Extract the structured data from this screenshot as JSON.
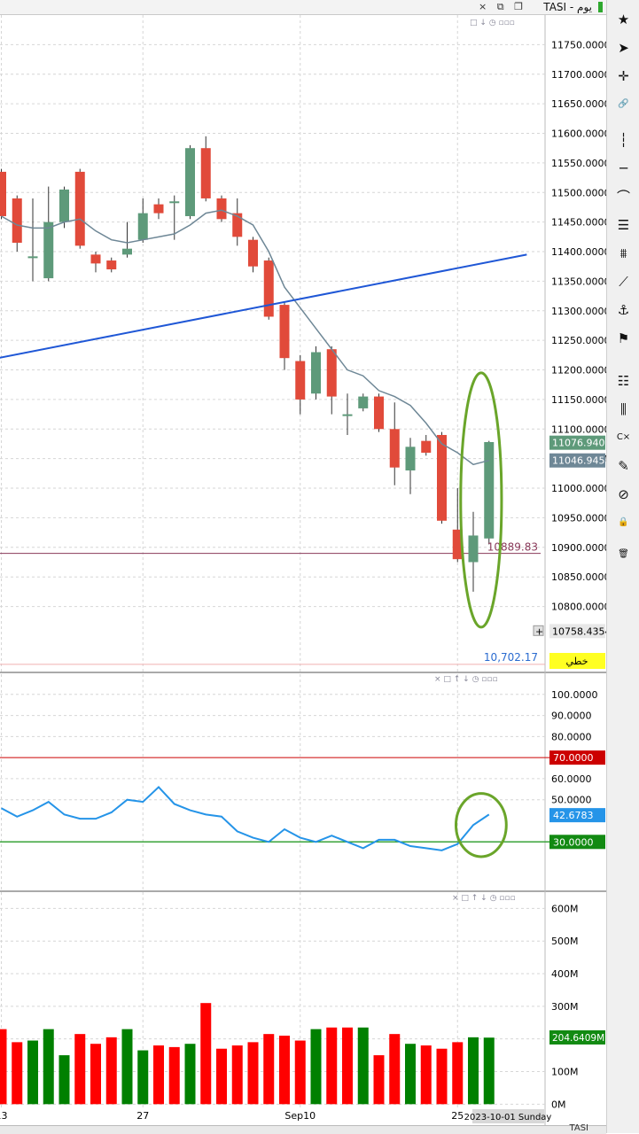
{
  "header": {
    "title": "TASI - يوم",
    "window_icons": "× ⧉ ❐"
  },
  "panel_controls": "□ ↓ ◷ ▫▫▫",
  "indicator_controls": "× □ ↑ ↓ ◷ ▫▫▫",
  "toolbar": {
    "tools": [
      {
        "name": "favorite-star-icon",
        "glyph": "★"
      },
      {
        "name": "pointer-cursor-icon",
        "glyph": "➤"
      },
      {
        "name": "crosshair-icon",
        "glyph": "✛"
      },
      {
        "name": "link-icon",
        "glyph": "🔗"
      },
      {
        "name": "vertical-line-icon",
        "glyph": "┆"
      },
      {
        "name": "horizontal-line-icon",
        "glyph": "─"
      },
      {
        "name": "curve-tool-icon",
        "glyph": "⌒"
      },
      {
        "name": "fibonacci-icon",
        "glyph": "☰"
      },
      {
        "name": "pattern-icon",
        "glyph": "⩩"
      },
      {
        "name": "zigzag-icon",
        "glyph": "⟋"
      },
      {
        "name": "text-anchor-icon",
        "glyph": "⚓"
      },
      {
        "name": "flag-icon",
        "glyph": "⚑"
      },
      {
        "name": "settings-list-icon",
        "glyph": "☷"
      },
      {
        "name": "candles-icon",
        "glyph": "⫼"
      },
      {
        "name": "clear-icon",
        "glyph": "C×"
      },
      {
        "name": "brush-icon",
        "glyph": "✎"
      },
      {
        "name": "hide-icon",
        "glyph": "⊘"
      },
      {
        "name": "lock-icon",
        "glyph": "🔒"
      },
      {
        "name": "trash-icon",
        "glyph": "🗑"
      }
    ]
  },
  "bottom": {
    "symbol": "TASI"
  },
  "colors": {
    "up": "#5e9a7a",
    "down": "#e14a3a",
    "ma": "#6e8796",
    "trend": "#1f57d6",
    "rsi": "#2594e8",
    "rsi_upper": "#cc0000",
    "rsi_lower": "#39a339",
    "vol_up": "#008000",
    "vol_down": "#ff0000",
    "ellipse": "#6aa52a"
  },
  "chart_data": [
    {
      "type": "candlestick",
      "name": "price",
      "x_ticks": [
        {
          "index": 0,
          "label": "13"
        },
        {
          "index": 9,
          "label": "27"
        },
        {
          "index": 19,
          "label": "Sep10"
        },
        {
          "index": 29,
          "label": "25"
        }
      ],
      "crosshair_date": "2023-10-01 Sunday",
      "ylim": [
        10690,
        11800
      ],
      "y_ticks": [
        10800,
        10850,
        10900,
        10950,
        11000,
        11050,
        11100,
        11150,
        11200,
        11250,
        11300,
        11350,
        11400,
        11450,
        11500,
        11550,
        11600,
        11650,
        11700,
        11750
      ],
      "y_tick_labels": [
        "10800.0000",
        "10850.0000",
        "10900.0000",
        "10950.0000",
        "11000.0000",
        "11050.0000",
        "11100.0000",
        "11150.0000",
        "11200.0000",
        "11250.0000",
        "11300.0000",
        "11350.0000",
        "11400.0000",
        "11450.0000",
        "11500.0000",
        "11550.0000",
        "11600.0000",
        "11650.0000",
        "11700.0000",
        "11750.0000"
      ],
      "candles": [
        {
          "o": 11535,
          "h": 11540,
          "c": 11460,
          "l": 11455
        },
        {
          "o": 11490,
          "h": 11495,
          "c": 11415,
          "l": 11400
        },
        {
          "o": 11390,
          "h": 11490,
          "c": 11392,
          "l": 11350
        },
        {
          "o": 11355,
          "h": 11510,
          "c": 11450,
          "l": 11350
        },
        {
          "o": 11450,
          "h": 11510,
          "c": 11505,
          "l": 11440
        },
        {
          "o": 11535,
          "h": 11540,
          "c": 11410,
          "l": 11405
        },
        {
          "o": 11395,
          "h": 11400,
          "c": 11380,
          "l": 11365
        },
        {
          "o": 11385,
          "h": 11390,
          "c": 11370,
          "l": 11365
        },
        {
          "o": 11395,
          "h": 11450,
          "c": 11405,
          "l": 11390
        },
        {
          "o": 11420,
          "h": 11490,
          "c": 11465,
          "l": 11415
        },
        {
          "o": 11480,
          "h": 11490,
          "c": 11465,
          "l": 11455
        },
        {
          "o": 11485,
          "h": 11495,
          "c": 11485,
          "l": 11420
        },
        {
          "o": 11460,
          "h": 11580,
          "c": 11575,
          "l": 11455
        },
        {
          "o": 11575,
          "h": 11595,
          "c": 11490,
          "l": 11485
        },
        {
          "o": 11490,
          "h": 11495,
          "c": 11455,
          "l": 11450
        },
        {
          "o": 11465,
          "h": 11490,
          "c": 11425,
          "l": 11410
        },
        {
          "o": 11420,
          "h": 11425,
          "c": 11375,
          "l": 11365
        },
        {
          "o": 11385,
          "h": 11390,
          "c": 11290,
          "l": 11285
        },
        {
          "o": 11310,
          "h": 11315,
          "c": 11220,
          "l": 11200
        },
        {
          "o": 11215,
          "h": 11225,
          "c": 11150,
          "l": 11125
        },
        {
          "o": 11160,
          "h": 11240,
          "c": 11230,
          "l": 11150
        },
        {
          "o": 11235,
          "h": 11240,
          "c": 11155,
          "l": 11125
        },
        {
          "o": 11125,
          "h": 11160,
          "c": 11125,
          "l": 11090
        },
        {
          "o": 11135,
          "h": 11160,
          "c": 11155,
          "l": 11130
        },
        {
          "o": 11155,
          "h": 11160,
          "c": 11100,
          "l": 11095
        },
        {
          "o": 11100,
          "h": 11145,
          "c": 11035,
          "l": 11005
        },
        {
          "o": 11030,
          "h": 11085,
          "c": 11070,
          "l": 10990
        },
        {
          "o": 11080,
          "h": 11090,
          "c": 11060,
          "l": 11055
        },
        {
          "o": 11090,
          "h": 11095,
          "c": 10945,
          "l": 10940
        },
        {
          "o": 10930,
          "h": 11000,
          "c": 10880,
          "l": 10875
        },
        {
          "o": 10875,
          "h": 10960,
          "c": 10920,
          "l": 10825
        },
        {
          "o": 10915,
          "h": 11080,
          "c": 11078,
          "l": 10905
        }
      ],
      "moving_average": [
        11460,
        11445,
        11440,
        11440,
        11450,
        11455,
        11435,
        11420,
        11415,
        11420,
        11425,
        11430,
        11445,
        11465,
        11470,
        11460,
        11445,
        11400,
        11340,
        11305,
        11270,
        11235,
        11200,
        11190,
        11165,
        11155,
        11140,
        11110,
        11075,
        11060,
        11040,
        11047
      ],
      "trendline": {
        "x0": -0.6,
        "y0": 11218,
        "x1": 33.4,
        "y1": 11395
      },
      "horizontal_line": {
        "value": 10889.83,
        "label": "10889.83"
      },
      "support_line": {
        "value": 10702.17,
        "label": "10,702.17"
      },
      "price_labels": [
        {
          "label": "11076.9400",
          "value": 11076.94,
          "style": "up"
        },
        {
          "label": "11046.9450",
          "value": 11046.945,
          "style": "ma"
        },
        {
          "label": "10758.4354",
          "value": 10758.4354,
          "style": "cross"
        }
      ],
      "line_type_badge": "خطي",
      "highlight": {
        "cx": 30.5,
        "cy": 10980,
        "rx": 1.3,
        "ry": 215
      }
    },
    {
      "type": "line",
      "name": "rsi",
      "ylim": [
        7,
        110
      ],
      "y_ticks": [
        50,
        60,
        80,
        90,
        100
      ],
      "y_tick_labels": [
        "50.0000",
        "60.0000",
        "80.0000",
        "90.0000",
        "100.0000"
      ],
      "upper": {
        "value": 70,
        "label": "70.0000"
      },
      "lower": {
        "value": 30,
        "label": "30.0000"
      },
      "current": {
        "value": 42.6783,
        "label": "42.6783"
      },
      "values": [
        46,
        42,
        45,
        49,
        43,
        41,
        41,
        44,
        50,
        49,
        56,
        48,
        45,
        43,
        42,
        35,
        32,
        30,
        36,
        32,
        30,
        33,
        30,
        27,
        31,
        31,
        28,
        27,
        26,
        29,
        38,
        43
      ],
      "highlight": {
        "cx": 30.5,
        "cy": 38,
        "rx": 1.6,
        "ry": 15
      }
    },
    {
      "type": "bar",
      "name": "volume",
      "ylim": [
        -10,
        650
      ],
      "y_ticks": [
        0,
        100,
        200,
        300,
        400,
        500,
        600
      ],
      "y_tick_labels": [
        "0M",
        "100M",
        "200M",
        "300M",
        "400M",
        "500M",
        "600M"
      ],
      "current": {
        "value": 204.6409,
        "label": "204.6409M"
      },
      "values": [
        230,
        190,
        195,
        230,
        150,
        215,
        185,
        205,
        230,
        165,
        180,
        175,
        185,
        310,
        170,
        180,
        190,
        215,
        210,
        195,
        230,
        235,
        235,
        235,
        150,
        215,
        185,
        180,
        170,
        190,
        205,
        204
      ],
      "colors": [
        "down",
        "down",
        "up",
        "up",
        "up",
        "down",
        "down",
        "down",
        "up",
        "up",
        "down",
        "down",
        "up",
        "down",
        "down",
        "down",
        "down",
        "down",
        "down",
        "down",
        "up",
        "down",
        "down",
        "up",
        "down",
        "down",
        "up",
        "down",
        "down",
        "down",
        "up",
        "up"
      ]
    }
  ]
}
